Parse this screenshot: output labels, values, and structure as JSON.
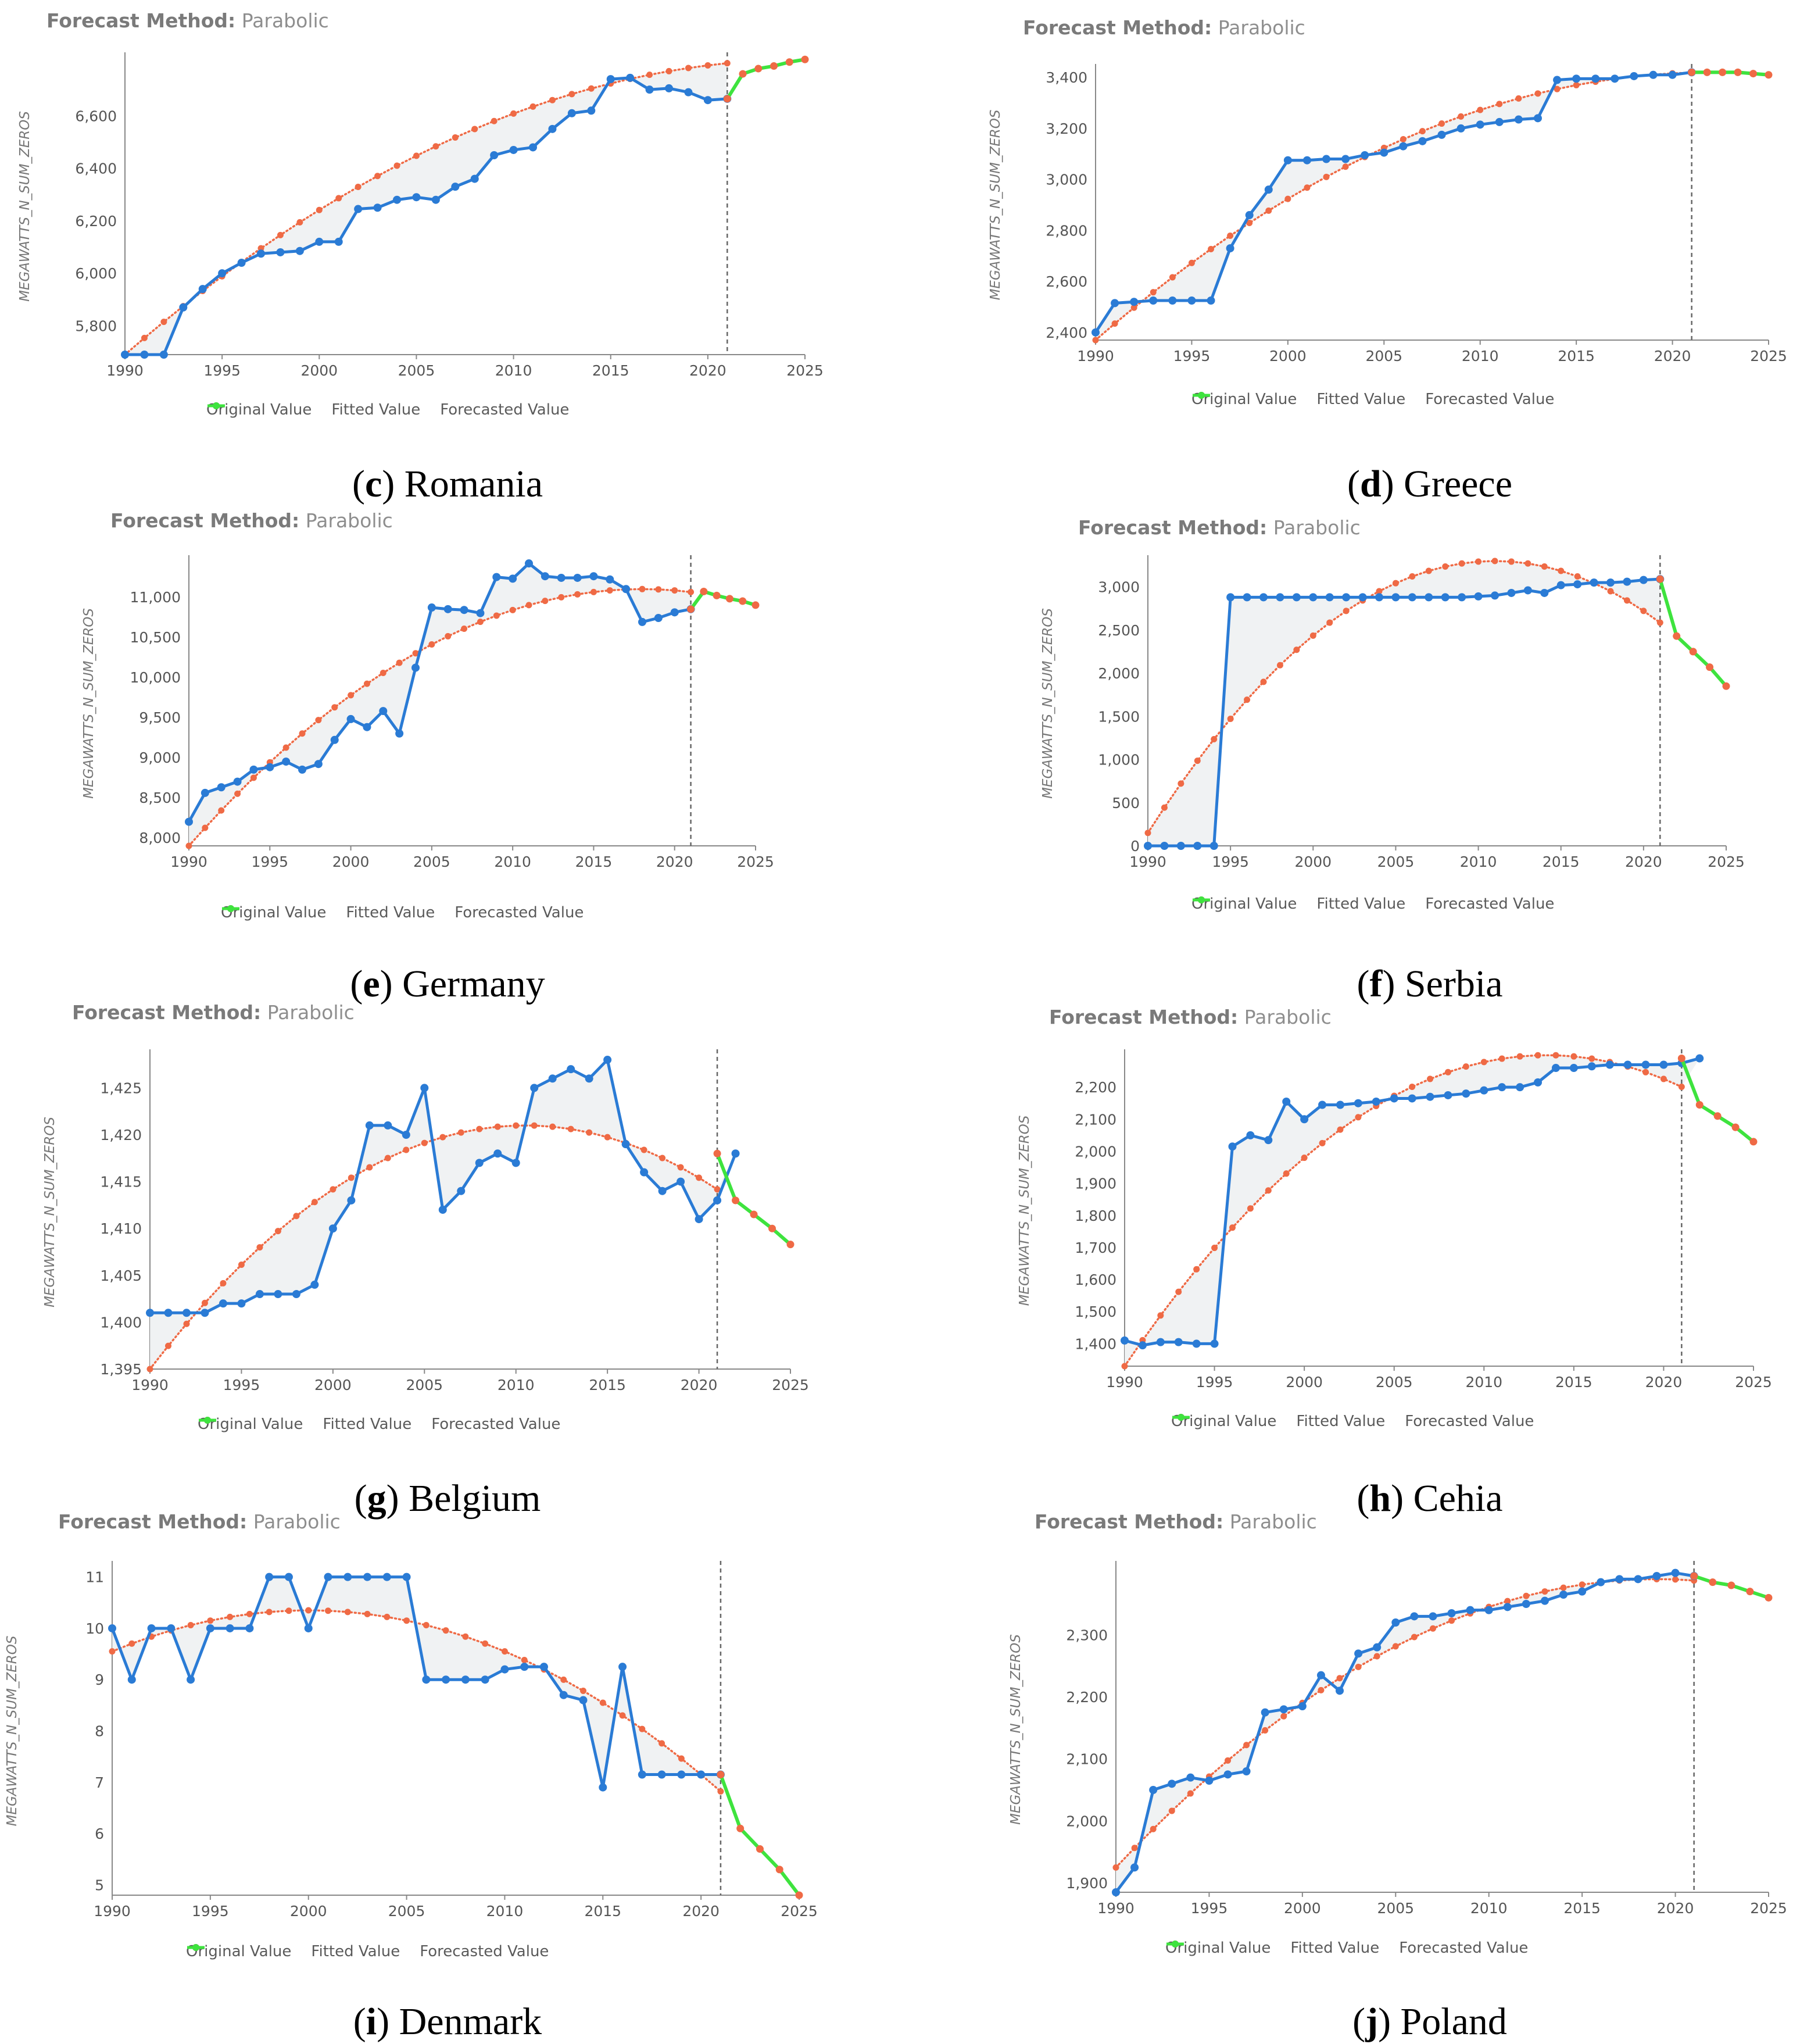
{
  "colors": {
    "original": "#2a7bd5",
    "fitted": "#ef6a45",
    "forecast": "#3ee33e",
    "axis": "#888888",
    "fill": "#eef1f2"
  },
  "legend": {
    "original": "Original Value",
    "fitted": "Fitted Value",
    "forecast": "Forecasted Value"
  },
  "method": {
    "label": "Forecast Method:",
    "value": "Parabolic"
  },
  "chart_data": [
    {
      "id": "c",
      "letter": "c",
      "country": "Romania",
      "type": "line",
      "ylabel": "MEGAWATTS_N_SUM_ZEROS",
      "xlim": [
        1990,
        2025
      ],
      "ylim": [
        5690,
        6820
      ],
      "xticks": [
        1990,
        1995,
        2000,
        2005,
        2010,
        2015,
        2020,
        2025
      ],
      "yticks": [
        5800,
        6000,
        6200,
        6400,
        6600
      ],
      "ytick_labels": [
        "5,800",
        "6,000",
        "6,200",
        "6,400",
        "6,600"
      ],
      "forecast_start": 2021,
      "fitted_last": 2021,
      "original_last": 2021,
      "fit_a": 6815.3,
      "fit_b": 0.85,
      "fit_c": 0.0,
      "fit_d": 1125.3,
      "fit_e": 0.0,
      "fit_t0": 2025,
      "original": [
        5690,
        5690,
        5690,
        5870,
        5940,
        6000,
        6040,
        6075,
        6080,
        6085,
        6120,
        6120,
        6245,
        6250,
        6280,
        6290,
        6280,
        6330,
        6360,
        6450,
        6470,
        6480,
        6550,
        6610,
        6620,
        6740,
        6745,
        6700,
        6705,
        6690,
        6660,
        6665
      ],
      "forecast": [
        6665,
        6760,
        6780,
        6790,
        6805,
        6815
      ]
    },
    {
      "id": "d",
      "letter": "d",
      "country": "Greece",
      "type": "line",
      "ylabel": "MEGAWATTS_N_SUM_ZEROS",
      "xlim": [
        1990,
        2025
      ],
      "ylim": [
        2370,
        3430
      ],
      "xticks": [
        1990,
        1995,
        2000,
        2005,
        2010,
        2015,
        2020,
        2025
      ],
      "yticks": [
        2400,
        2600,
        2800,
        3000,
        3200,
        3400
      ],
      "ytick_labels": [
        "2,400",
        "2,600",
        "2,800",
        "3,000",
        "3,200",
        "3,400"
      ],
      "forecast_start": 2021,
      "fitted_last": 2021,
      "original_last": 2021,
      "fit_vertex": 2022,
      "fit_vmax": 3420,
      "fit_y0": 2370,
      "original": [
        2400,
        2515,
        2520,
        2525,
        2525,
        2525,
        2525,
        2730,
        2860,
        2960,
        3075,
        3075,
        3080,
        3080,
        3095,
        3105,
        3130,
        3150,
        3175,
        3200,
        3215,
        3225,
        3235,
        3240,
        3390,
        3395,
        3395,
        3395,
        3405,
        3410,
        3410,
        3420
      ],
      "forecast": [
        3420,
        3420,
        3420,
        3420,
        3415,
        3410
      ]
    },
    {
      "id": "e",
      "letter": "e",
      "country": "Germany",
      "type": "line",
      "ylabel": "MEGAWATTS_N_SUM_ZEROS",
      "xlim": [
        1990,
        2025
      ],
      "ylim": [
        7900,
        11450
      ],
      "xticks": [
        1990,
        1995,
        2000,
        2005,
        2010,
        2015,
        2020,
        2025
      ],
      "yticks": [
        8000,
        8500,
        9000,
        9500,
        10000,
        10500,
        11000
      ],
      "ytick_labels": [
        "8,000",
        "8,500",
        "9,000",
        "9,500",
        "10,000",
        "10,500",
        "11,000"
      ],
      "forecast_start": 2021,
      "fitted_last": 2021,
      "original_last": 2021,
      "fit_vertex": 2018,
      "fit_vmax": 11100,
      "fit_y0": 7900,
      "original": [
        8200,
        8560,
        8630,
        8700,
        8850,
        8880,
        8950,
        8850,
        8920,
        9220,
        9480,
        9380,
        9580,
        9300,
        10120,
        10870,
        10850,
        10840,
        10800,
        11250,
        11230,
        11420,
        11260,
        11240,
        11240,
        11260,
        11220,
        11100,
        10690,
        10740,
        10810,
        10850
      ],
      "forecast": [
        10850,
        11070,
        11020,
        10980,
        10950,
        10900
      ]
    },
    {
      "id": "f",
      "letter": "f",
      "country": "Serbia",
      "type": "line",
      "ylabel": "MEGAWATTS_N_SUM_ZEROS",
      "xlim": [
        1990,
        2025
      ],
      "ylim": [
        0,
        3300
      ],
      "xticks": [
        1990,
        1995,
        2000,
        2005,
        2010,
        2015,
        2020,
        2025
      ],
      "yticks": [
        0,
        500,
        1000,
        1500,
        2000,
        2500,
        3000
      ],
      "ytick_labels": [
        "0",
        "500",
        "1,000",
        "1,500",
        "2,000",
        "2,500",
        "3,000"
      ],
      "forecast_start": 2021,
      "fitted_last": 2021,
      "original_last": 2021,
      "fit_vertex": 2011,
      "fit_vmax": 3300,
      "fit_y0": 150,
      "original": [
        0,
        0,
        0,
        0,
        0,
        2880,
        2880,
        2880,
        2880,
        2880,
        2880,
        2880,
        2880,
        2880,
        2880,
        2880,
        2880,
        2880,
        2880,
        2880,
        2890,
        2900,
        2930,
        2960,
        2930,
        3020,
        3030,
        3050,
        3050,
        3060,
        3080,
        3090
      ],
      "forecast": [
        3090,
        2430,
        2250,
        2070,
        1850
      ]
    },
    {
      "id": "g",
      "letter": "g",
      "country": "Belgium",
      "type": "line",
      "ylabel": "MEGAWATTS_N_SUM_ZEROS",
      "xlim": [
        1990,
        2025
      ],
      "ylim": [
        1395,
        1428.5
      ],
      "xticks": [
        1990,
        1995,
        2000,
        2005,
        2010,
        2015,
        2020,
        2025
      ],
      "yticks": [
        1395,
        1400,
        1405,
        1410,
        1415,
        1420,
        1425
      ],
      "ytick_labels": [
        "1,395",
        "1,400",
        "1,405",
        "1,410",
        "1,415",
        "1,420",
        "1,425"
      ],
      "forecast_start": 2021,
      "fitted_last": 2021,
      "original_last": 2021,
      "fit_vertex": 2010.5,
      "fit_vmax": 1421,
      "fit_y0": 1395,
      "original": [
        1401,
        1401,
        1401,
        1401,
        1402,
        1402,
        1403,
        1403,
        1403,
        1404,
        1410,
        1413,
        1421,
        1421,
        1420,
        1425,
        1412,
        1414,
        1417,
        1418,
        1417,
        1425,
        1426,
        1427,
        1426,
        1428,
        1419,
        1416,
        1414,
        1415,
        1411,
        1413,
        1418
      ],
      "forecast": [
        1418,
        1413,
        1411.5,
        1410,
        1408.3
      ]
    },
    {
      "id": "h",
      "letter": "h",
      "country": "Cehia",
      "type": "line",
      "ylabel": "MEGAWATTS_N_SUM_ZEROS",
      "xlim": [
        1990,
        2025
      ],
      "ylim": [
        1330,
        2300
      ],
      "xticks": [
        1990,
        1995,
        2000,
        2005,
        2010,
        2015,
        2020,
        2025
      ],
      "yticks": [
        1400,
        1500,
        1600,
        1700,
        1800,
        1900,
        2000,
        2100,
        2200
      ],
      "ytick_labels": [
        "1,400",
        "1,500",
        "1,600",
        "1,700",
        "1,800",
        "1,900",
        "2,000",
        "2,100",
        "2,200"
      ],
      "forecast_start": 2021,
      "fitted_last": 2021,
      "original_last": 2021,
      "fit_vertex": 2013.5,
      "fit_vmax": 2300,
      "fit_y0": 1330,
      "original": [
        1410,
        1395,
        1405,
        1405,
        1400,
        1400,
        2015,
        2050,
        2035,
        2155,
        2100,
        2145,
        2145,
        2150,
        2155,
        2165,
        2165,
        2170,
        2175,
        2180,
        2190,
        2200,
        2200,
        2215,
        2260,
        2260,
        2265,
        2270,
        2270,
        2270,
        2270,
        2275,
        2290
      ],
      "forecast": [
        2290,
        2145,
        2110,
        2075,
        2030
      ]
    },
    {
      "id": "i",
      "letter": "i",
      "country": "Denmark",
      "type": "line",
      "ylabel": "MEGAWATTS_N_SUM_ZEROS",
      "xlim": [
        1990,
        2025
      ],
      "ylim": [
        4.8,
        11.2
      ],
      "xticks": [
        1990,
        1995,
        2000,
        2005,
        2010,
        2015,
        2020,
        2025
      ],
      "yticks": [
        5,
        6,
        7,
        8,
        9,
        10,
        11
      ],
      "ytick_labels": [
        "5",
        "6",
        "7",
        "8",
        "9",
        "10",
        "11"
      ],
      "forecast_start": 2021,
      "fitted_last": 2021,
      "original_last": 2021,
      "fit_vertex": 2000,
      "fit_vmax": 10.35,
      "fit_y0": 9.55,
      "original": [
        10,
        9,
        10,
        10,
        9,
        10,
        10,
        10,
        11,
        11,
        10,
        11,
        11,
        11,
        11,
        11,
        9,
        9,
        9,
        9,
        9.2,
        9.25,
        9.25,
        8.7,
        8.6,
        6.9,
        9.25,
        7.15,
        7.15,
        7.15,
        7.15,
        7.15
      ],
      "forecast": [
        7.15,
        6.1,
        5.7,
        5.3,
        4.8
      ]
    },
    {
      "id": "j",
      "letter": "j",
      "country": "Poland",
      "type": "line",
      "ylabel": "MEGAWATTS_N_SUM_ZEROS",
      "xlim": [
        1990,
        2025
      ],
      "ylim": [
        1885,
        2410
      ],
      "xticks": [
        1990,
        1995,
        2000,
        2005,
        2010,
        2015,
        2020,
        2025
      ],
      "yticks": [
        1900,
        2000,
        2100,
        2200,
        2300
      ],
      "ytick_labels": [
        "1,900",
        "2,000",
        "2,100",
        "2,200",
        "2,300"
      ],
      "forecast_start": 2021,
      "fitted_last": 2021,
      "original_last": 2021,
      "fit_vertex": 2019,
      "fit_vmax": 2390,
      "fit_y0": 1925,
      "original": [
        1885,
        1925,
        2050,
        2060,
        2070,
        2065,
        2075,
        2080,
        2175,
        2180,
        2185,
        2235,
        2210,
        2270,
        2280,
        2320,
        2330,
        2330,
        2335,
        2340,
        2340,
        2345,
        2350,
        2355,
        2365,
        2370,
        2385,
        2390,
        2390,
        2395,
        2400,
        2395
      ],
      "forecast": [
        2395,
        2385,
        2380,
        2370,
        2360
      ]
    }
  ]
}
